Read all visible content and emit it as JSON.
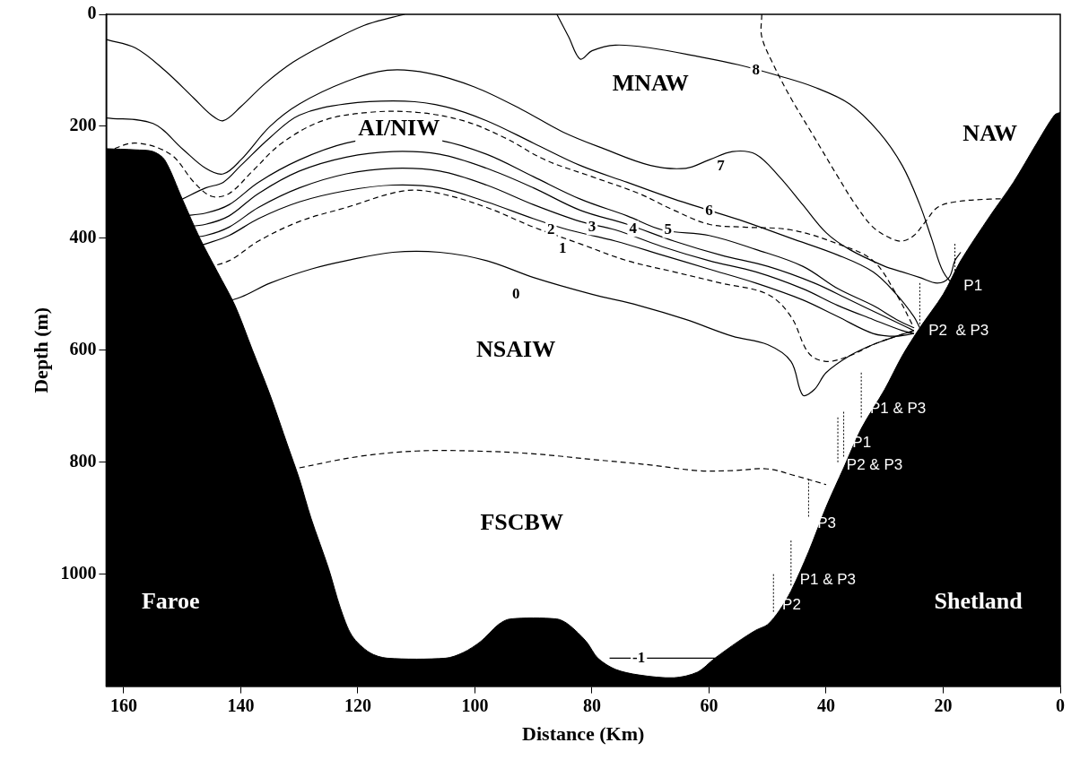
{
  "chart_data": {
    "type": "line",
    "x_label": "Distance (Km)",
    "y_label": "Depth (m)",
    "xlim": [
      0,
      163
    ],
    "xticks": [
      0,
      20,
      40,
      60,
      80,
      100,
      120,
      140,
      160
    ],
    "ylim": [
      0,
      1200
    ],
    "yticks": [
      0,
      200,
      400,
      600,
      800,
      1000
    ],
    "grid": false,
    "bathymetry": {
      "color": "#000000",
      "x": [
        163,
        158,
        155,
        153,
        150,
        147,
        144,
        141,
        138,
        135,
        132,
        130,
        128,
        125,
        123,
        121,
        118,
        115,
        105,
        102,
        99,
        96,
        94,
        86,
        84,
        81,
        79,
        76,
        72,
        66,
        62,
        59,
        55,
        52,
        50,
        48,
        46,
        43,
        40,
        37,
        34,
        30,
        27,
        24,
        20,
        17,
        12,
        8,
        4,
        1,
        0
      ],
      "values": [
        240,
        242,
        245,
        260,
        330,
        400,
        460,
        520,
        600,
        680,
        770,
        830,
        900,
        990,
        1060,
        1110,
        1140,
        1150,
        1150,
        1140,
        1120,
        1090,
        1080,
        1080,
        1090,
        1120,
        1150,
        1170,
        1180,
        1185,
        1175,
        1150,
        1120,
        1100,
        1090,
        1065,
        1030,
        960,
        880,
        810,
        740,
        670,
        610,
        560,
        500,
        440,
        360,
        300,
        230,
        180,
        175
      ]
    },
    "series": [
      {
        "color": "#000000",
        "line_style": "solid",
        "x": [
          163,
          158,
          153,
          148,
          145,
          143,
          140,
          136,
          131,
          125,
          119,
          114,
          112
        ],
        "values": [
          45,
          60,
          100,
          150,
          180,
          190,
          165,
          125,
          85,
          50,
          20,
          5,
          0
        ]
      },
      {
        "color": "#000000",
        "line_style": "solid",
        "x": [
          86,
          84,
          82,
          80,
          76,
          70,
          62,
          55,
          48,
          42,
          36,
          31,
          27,
          24,
          22,
          20,
          18,
          16,
          15
        ],
        "values": [
          0,
          40,
          80,
          65,
          55,
          60,
          75,
          90,
          110,
          130,
          160,
          210,
          270,
          340,
          400,
          460,
          480,
          450,
          430
        ]
      },
      {
        "color": "#000000",
        "line_style": "solid",
        "x": [
          163,
          155,
          150,
          146,
          143,
          140,
          135,
          130,
          122,
          115,
          108,
          100,
          92,
          85,
          78,
          70,
          64,
          60,
          56,
          52,
          48,
          44,
          40,
          36,
          30,
          27,
          24,
          21,
          19,
          18,
          17
        ],
        "values": [
          185,
          195,
          240,
          275,
          285,
          260,
          200,
          160,
          120,
          100,
          105,
          130,
          170,
          210,
          240,
          270,
          275,
          260,
          245,
          250,
          290,
          340,
          390,
          420,
          450,
          460,
          470,
          480,
          470,
          440,
          425
        ]
      },
      {
        "color": "#000000",
        "line_style": "solid",
        "x": [
          150,
          146,
          143,
          140,
          135,
          130,
          122,
          112,
          105,
          98,
          90,
          82,
          74,
          66,
          60,
          54,
          46,
          38,
          32,
          28,
          25,
          24
        ],
        "values": [
          330,
          310,
          300,
          270,
          220,
          180,
          160,
          155,
          165,
          190,
          230,
          270,
          300,
          330,
          350,
          370,
          400,
          430,
          460,
          500,
          540,
          560
        ]
      },
      {
        "color": "#000000",
        "line_style": "dashed",
        "x": [
          163,
          158,
          152,
          148,
          145,
          142,
          138,
          133,
          126,
          118,
          110,
          102,
          95,
          88,
          80,
          72,
          66,
          60,
          54,
          46,
          38,
          32,
          28,
          25
        ],
        "values": [
          245,
          230,
          250,
          300,
          325,
          320,
          280,
          230,
          190,
          175,
          175,
          190,
          220,
          260,
          290,
          320,
          350,
          375,
          380,
          385,
          410,
          440,
          500,
          560
        ]
      },
      {
        "color": "#000000",
        "line_style": "solid",
        "x": [
          150,
          146,
          142,
          137,
          130,
          122,
          114,
          106,
          98,
          90,
          82,
          74,
          68,
          60,
          52,
          44,
          38,
          32,
          28,
          25
        ],
        "values": [
          360,
          355,
          340,
          300,
          260,
          230,
          220,
          225,
          250,
          290,
          330,
          360,
          385,
          395,
          420,
          450,
          490,
          520,
          545,
          560
        ]
      },
      {
        "color": "#000000",
        "line_style": "solid",
        "x": [
          150,
          146,
          142,
          137,
          130,
          122,
          114,
          106,
          98,
          90,
          82,
          74,
          66,
          58,
          50,
          42,
          36,
          30,
          26,
          25
        ],
        "values": [
          380,
          375,
          360,
          320,
          280,
          255,
          245,
          250,
          275,
          310,
          350,
          375,
          405,
          430,
          450,
          480,
          510,
          540,
          560,
          565
        ]
      },
      {
        "color": "#000000",
        "line_style": "solid",
        "x": [
          150,
          146,
          142,
          137,
          130,
          122,
          114,
          106,
          98,
          90,
          82,
          76,
          68,
          60,
          52,
          44,
          38,
          32,
          27,
          25
        ],
        "values": [
          400,
          395,
          380,
          345,
          310,
          285,
          275,
          280,
          305,
          340,
          370,
          385,
          415,
          440,
          460,
          490,
          520,
          545,
          565,
          570
        ]
      },
      {
        "color": "#000000",
        "line_style": "solid",
        "x": [
          149,
          146,
          142,
          137,
          130,
          122,
          114,
          106,
          98,
          90,
          84,
          76,
          68,
          60,
          52,
          44,
          38,
          32,
          28,
          25
        ],
        "values": [
          420,
          410,
          395,
          365,
          335,
          315,
          305,
          310,
          335,
          365,
          385,
          405,
          430,
          455,
          480,
          510,
          540,
          570,
          575,
          570
        ]
      },
      {
        "color": "#000000",
        "line_style": "dashed",
        "x": [
          147,
          142,
          137,
          130,
          122,
          112,
          106,
          98,
          90,
          82,
          74,
          66,
          58,
          50,
          46,
          43,
          40,
          36,
          32,
          28,
          25
        ],
        "values": [
          455,
          440,
          405,
          370,
          345,
          315,
          320,
          345,
          380,
          410,
          440,
          460,
          480,
          500,
          540,
          605,
          620,
          610,
          590,
          575,
          565
        ]
      },
      {
        "color": "#000000",
        "line_style": "solid",
        "x": [
          145,
          140,
          135,
          128,
          122,
          114,
          106,
          98,
          90,
          80,
          72,
          64,
          56,
          50,
          46,
          44,
          42,
          40,
          36,
          32,
          28,
          25
        ],
        "values": [
          520,
          505,
          480,
          455,
          440,
          425,
          425,
          440,
          470,
          500,
          520,
          545,
          575,
          590,
          620,
          680,
          670,
          640,
          610,
          590,
          575,
          565
        ]
      },
      {
        "color": "#000000",
        "line_style": "dashed",
        "x": [
          130,
          120,
          110,
          100,
          90,
          80,
          70,
          62,
          56,
          50,
          45,
          40
        ],
        "values": [
          810,
          790,
          780,
          780,
          785,
          795,
          805,
          815,
          815,
          812,
          825,
          840
        ]
      },
      {
        "color": "#000000",
        "line_style": "dashed",
        "x": [
          51,
          51,
          49,
          46,
          42,
          38,
          35,
          32,
          29,
          27,
          25,
          23,
          21,
          18,
          12,
          8
        ],
        "values": [
          0,
          40,
          90,
          150,
          220,
          290,
          340,
          380,
          400,
          405,
          395,
          370,
          345,
          335,
          330,
          330
        ]
      },
      {
        "color": "#000000",
        "line_style": "solid",
        "x": [
          77,
          59
        ],
        "values": [
          1150,
          1150
        ]
      }
    ],
    "contour_labels": [
      {
        "text": "8",
        "x": 52,
        "y": 100
      },
      {
        "text": "7",
        "x": 58,
        "y": 272
      },
      {
        "text": "6",
        "x": 60,
        "y": 352
      },
      {
        "text": "5",
        "x": 67,
        "y": 385
      },
      {
        "text": "4",
        "x": 73,
        "y": 383
      },
      {
        "text": "3",
        "x": 80,
        "y": 380
      },
      {
        "text": "2",
        "x": 87,
        "y": 385
      },
      {
        "text": "1",
        "x": 85,
        "y": 418
      },
      {
        "text": "0",
        "x": 93,
        "y": 500
      },
      {
        "text": "-1",
        "x": 72,
        "y": 1150
      }
    ],
    "water_masses": [
      {
        "text": "MNAW",
        "x": 70,
        "y": 125
      },
      {
        "text": "NAW",
        "x": 12,
        "y": 215
      },
      {
        "text": "AI/NIW",
        "x": 113,
        "y": 205
      },
      {
        "text": "NSAIW",
        "x": 93,
        "y": 600
      },
      {
        "text": "FSCBW",
        "x": 92,
        "y": 910
      }
    ],
    "place_labels": [
      {
        "text": "Faroe",
        "x": 152,
        "y": 1050
      },
      {
        "text": "Shetland",
        "x": 14,
        "y": 1050
      }
    ],
    "moorings": [
      {
        "x": 18,
        "depth": [
          410,
          470
        ]
      },
      {
        "x": 24,
        "depth": [
          480,
          555
        ]
      },
      {
        "x": 34,
        "depth": [
          640,
          720
        ]
      },
      {
        "x": 37,
        "depth": [
          710,
          790
        ]
      },
      {
        "x": 38,
        "depth": [
          720,
          800
        ]
      },
      {
        "x": 43,
        "depth": [
          830,
          900
        ]
      },
      {
        "x": 46,
        "depth": [
          940,
          1020
        ]
      },
      {
        "x": 49,
        "depth": [
          1000,
          1070
        ]
      }
    ],
    "mooring_labels": [
      {
        "text": "P1",
        "x": 16.5,
        "y": 485
      },
      {
        "text": "P2  & P3",
        "x": 22.5,
        "y": 565
      },
      {
        "text": "P1 & P3",
        "x": 32.5,
        "y": 705
      },
      {
        "text": "P1",
        "x": 35.5,
        "y": 765
      },
      {
        "text": "P2 & P3",
        "x": 36.5,
        "y": 805
      },
      {
        "text": "P3",
        "x": 41.5,
        "y": 910
      },
      {
        "text": "P1 & P3",
        "x": 44.5,
        "y": 1010
      },
      {
        "text": "P2",
        "x": 47.5,
        "y": 1055
      }
    ]
  }
}
